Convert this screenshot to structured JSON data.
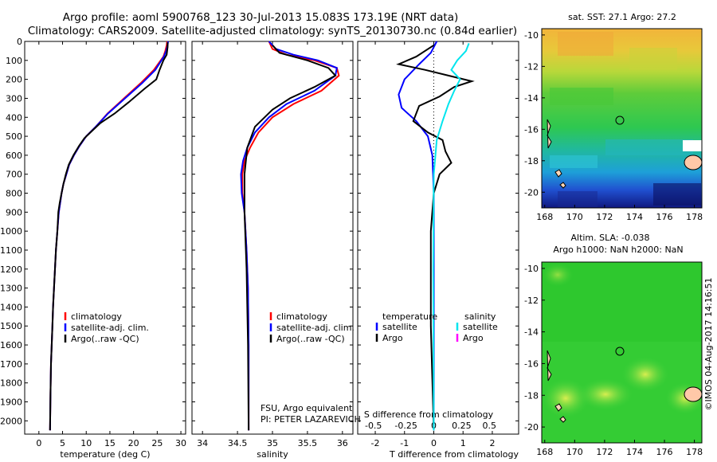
{
  "header": {
    "line1": "Argo profile: aoml 5900768_123 30-Jul-2013 15.083S 173.19E (NRT data)",
    "line2": "Climatology: CARS2009. Satellite-adjusted climatology: synTS_20130730.nc (0.84d earlier)"
  },
  "side_stamp": "©IMOS 04-Aug-2017 14:16:51",
  "colors": {
    "climatology": "#ff0000",
    "satellite": "#0000ff",
    "argo": "#000000",
    "sal_satellite": "#00e5ee",
    "sal_argo": "#ff00ff"
  },
  "chart_data": [
    {
      "type": "line",
      "id": "temperature",
      "xlabel": "temperature (deg C)",
      "ylabel": "",
      "xlim": [
        -3,
        31
      ],
      "ylim": [
        2070,
        0
      ],
      "xticks": [
        0,
        5,
        10,
        15,
        20,
        25,
        30
      ],
      "yticks": [
        0,
        100,
        200,
        300,
        400,
        500,
        600,
        700,
        800,
        900,
        1000,
        1100,
        1200,
        1300,
        1400,
        1500,
        1600,
        1700,
        1800,
        1900,
        2000
      ],
      "legend": [
        "climatology",
        "satellite-adj. clim.",
        "Argo(..raw -QC)"
      ],
      "series": [
        {
          "name": "climatology",
          "x": [
            27.1,
            27.0,
            26.7,
            26.3,
            24.3,
            21.5,
            18.0,
            14.5,
            12.0,
            10.0,
            8.6,
            7.4,
            6.4,
            5.8,
            5.2,
            4.8,
            4.5,
            4.2,
            3.9,
            3.6,
            3.4,
            3.2,
            3.0,
            2.85,
            2.7,
            2.55,
            2.45,
            2.35
          ],
          "y": [
            0,
            20,
            50,
            80,
            150,
            220,
            300,
            380,
            450,
            500,
            550,
            600,
            650,
            700,
            750,
            800,
            850,
            900,
            1000,
            1100,
            1200,
            1300,
            1400,
            1500,
            1600,
            1700,
            1850,
            2050
          ]
        },
        {
          "name": "satellite-adj. clim.",
          "x": [
            27.3,
            27.2,
            26.9,
            26.4,
            24.6,
            21.8,
            18.2,
            14.6,
            12.0,
            10.0,
            8.6,
            7.4,
            6.4,
            5.8,
            5.2,
            4.8,
            4.5,
            4.2,
            3.9,
            3.6,
            3.4,
            3.2,
            3.0,
            2.85,
            2.7,
            2.55,
            2.45,
            2.35
          ],
          "y": [
            0,
            20,
            50,
            80,
            150,
            220,
            300,
            380,
            450,
            500,
            550,
            600,
            650,
            700,
            750,
            800,
            850,
            900,
            1000,
            1100,
            1200,
            1300,
            1400,
            1500,
            1600,
            1700,
            1850,
            2050
          ]
        },
        {
          "name": "Argo(..raw -QC)",
          "x": [
            27.2,
            27.2,
            27.0,
            26.3,
            25.5,
            24.8,
            22.3,
            19.0,
            16.0,
            13.0,
            11.3,
            9.6,
            8.5,
            7.3,
            6.3,
            5.7,
            5.2,
            4.8,
            4.4,
            4.1,
            3.9,
            3.6,
            3.4,
            3.2,
            3.0,
            2.85,
            2.7,
            2.55,
            2.45,
            2.35
          ],
          "y": [
            5,
            30,
            70,
            100,
            150,
            200,
            250,
            320,
            380,
            430,
            470,
            510,
            550,
            600,
            650,
            700,
            750,
            800,
            850,
            900,
            1000,
            1100,
            1200,
            1300,
            1400,
            1500,
            1600,
            1700,
            1850,
            2050
          ]
        }
      ]
    },
    {
      "type": "line",
      "id": "salinity",
      "xlabel": "salinity",
      "ylabel": "",
      "xlim": [
        33.85,
        36.15
      ],
      "ylim": [
        2070,
        0
      ],
      "xticks": [
        34,
        34.5,
        35,
        35.5,
        36
      ],
      "legend": [
        "climatology",
        "satellite-adj. clim.",
        "Argo(..raw -QC)"
      ],
      "annotations": [
        "FSU, Argo equivalent",
        "PI: PETER LAZAREVICH"
      ],
      "series": [
        {
          "name": "climatology",
          "x": [
            34.95,
            35.0,
            35.2,
            35.6,
            35.92,
            35.95,
            35.7,
            35.3,
            35.0,
            34.8,
            34.68,
            34.6,
            34.57,
            34.57,
            34.6,
            34.63,
            34.65,
            34.66,
            34.66
          ],
          "y": [
            0,
            40,
            70,
            100,
            140,
            180,
            260,
            330,
            400,
            480,
            560,
            630,
            700,
            800,
            900,
            1100,
            1300,
            1600,
            2050
          ]
        },
        {
          "name": "satellite-adj. clim.",
          "x": [
            34.95,
            35.05,
            35.3,
            35.65,
            35.92,
            35.9,
            35.6,
            35.2,
            34.95,
            34.75,
            34.64,
            34.58,
            34.55,
            34.56,
            34.6,
            34.63,
            34.65,
            34.66,
            34.66
          ],
          "y": [
            0,
            40,
            70,
            100,
            140,
            180,
            260,
            330,
            400,
            480,
            560,
            630,
            700,
            800,
            900,
            1100,
            1300,
            1600,
            2050
          ]
        },
        {
          "name": "Argo(..raw -QC)",
          "x": [
            35.0,
            35.1,
            35.5,
            35.8,
            35.9,
            35.6,
            35.25,
            35.0,
            34.75,
            34.64,
            34.6,
            34.6,
            34.63,
            34.65,
            34.66
          ],
          "y": [
            20,
            60,
            100,
            140,
            180,
            240,
            300,
            360,
            450,
            560,
            700,
            900,
            1200,
            1600,
            2050
          ]
        }
      ]
    },
    {
      "type": "line",
      "id": "differences",
      "xlabel": "T difference from climatology",
      "xlabel_top": "S difference from climatology",
      "xlim": [
        -2.6,
        2.9
      ],
      "ylim": [
        2070,
        0
      ],
      "xticks": [
        -2,
        -1,
        0,
        1,
        2
      ],
      "xticks_s": [
        "-0.5",
        "-0.25",
        "0",
        "0.25",
        "0.5"
      ],
      "legend_title_t": "temperature",
      "legend_title_s": "salinity",
      "legend_t": [
        "satellite",
        "Argo"
      ],
      "legend_s": [
        "satellite",
        "Argo"
      ],
      "series": [
        {
          "name": "temperature satellite",
          "x": [
            0.1,
            -0.1,
            -0.5,
            -1.0,
            -1.2,
            -1.1,
            -0.6,
            -0.2,
            -0.05,
            0.0,
            0.0,
            0.0
          ],
          "y": [
            0,
            60,
            120,
            200,
            280,
            350,
            420,
            500,
            600,
            800,
            1200,
            2050
          ]
        },
        {
          "name": "temperature Argo",
          "x": [
            0.0,
            -0.6,
            -1.2,
            -0.3,
            0.5,
            1.3,
            0.7,
            0.2,
            -0.5,
            -0.7,
            -0.2,
            0.3,
            0.4,
            0.6,
            0.2,
            0.0,
            -0.1,
            -0.1,
            0.0
          ],
          "y": [
            20,
            80,
            120,
            150,
            180,
            210,
            240,
            290,
            340,
            420,
            480,
            520,
            580,
            640,
            700,
            800,
            1000,
            1500,
            2050
          ]
        },
        {
          "name": "salinity satellite",
          "x": [
            1.2,
            1.1,
            0.8,
            0.6,
            0.9,
            0.7,
            0.5,
            0.3,
            0.1,
            0.0,
            -0.02,
            0.0
          ],
          "y": [
            10,
            50,
            100,
            150,
            200,
            260,
            330,
            420,
            520,
            700,
            1200,
            2050
          ]
        }
      ],
      "zero_line": "dotted"
    },
    {
      "type": "heatmap",
      "id": "sst-map",
      "title": "sat. SST: 27.1  Argo: 27.2",
      "xticks": [
        168,
        170,
        172,
        174,
        176,
        178
      ],
      "yticks": [
        -10,
        -12,
        -14,
        -16,
        -18,
        -20
      ],
      "xlim": [
        167.8,
        178.5
      ],
      "ylim": [
        -21.0,
        -9.6
      ],
      "marker": {
        "lon": 173.19,
        "lat": -15.083
      }
    },
    {
      "type": "heatmap",
      "id": "sla-map",
      "title_line1": "Altim. SLA: -0.038",
      "title_line2": "Argo h1000: NaN h2000: NaN",
      "xticks": [
        168,
        170,
        172,
        174,
        176,
        178
      ],
      "yticks": [
        -10,
        -12,
        -14,
        -16,
        -18,
        -20
      ],
      "xlim": [
        167.8,
        178.5
      ],
      "ylim": [
        -21.0,
        -9.6
      ],
      "marker": {
        "lon": 173.19,
        "lat": -15.083
      }
    }
  ]
}
